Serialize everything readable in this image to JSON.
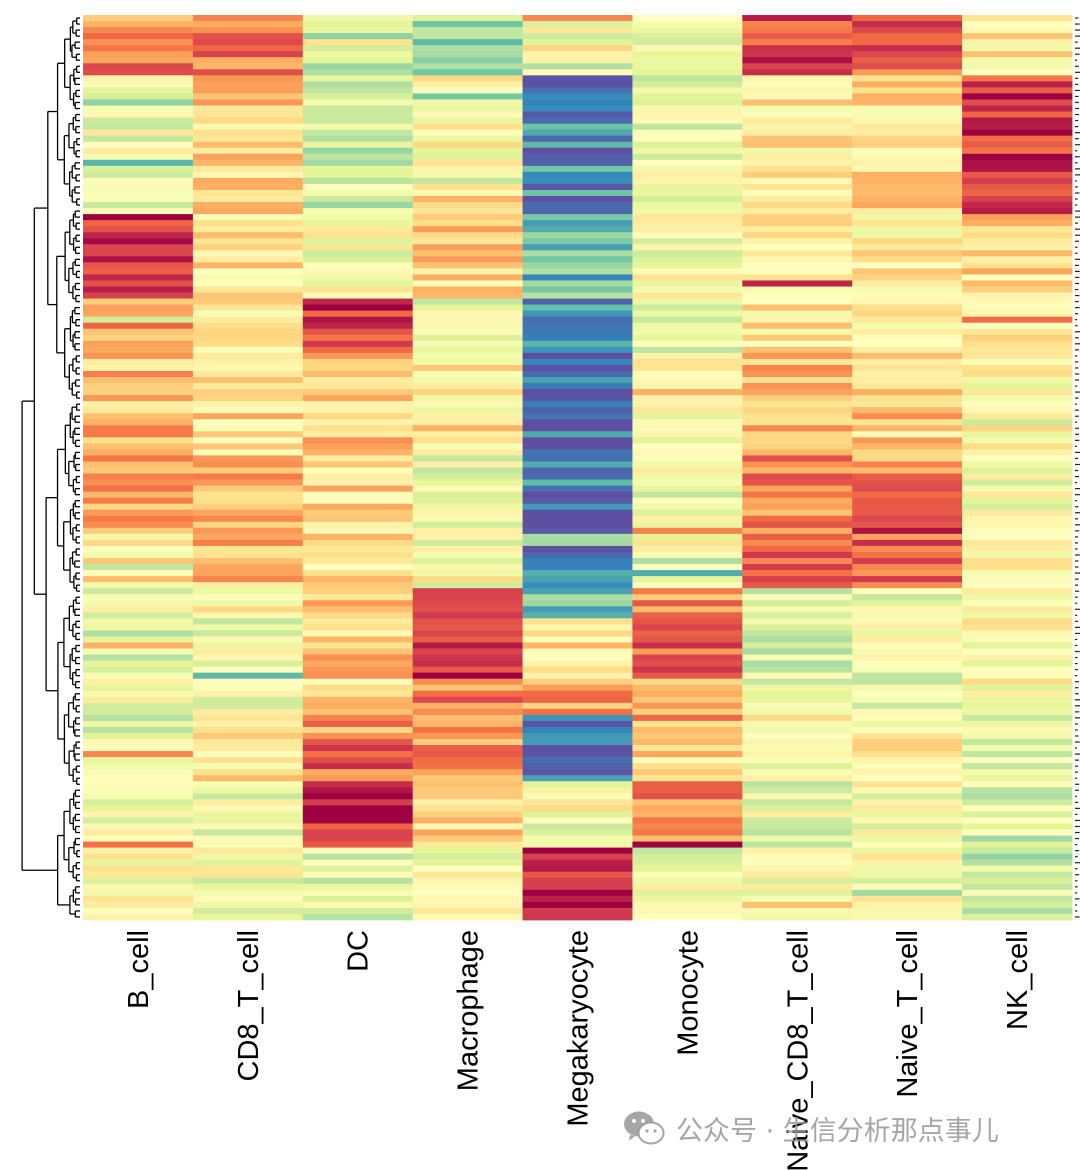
{
  "chart_data": {
    "type": "heatmap",
    "title": "",
    "xlabel": "",
    "ylabel": "",
    "columns": [
      "B_cell",
      "CD8_T_cell",
      "DC",
      "Macrophage",
      "Megakaryocyte",
      "Monocyte",
      "Naive_CD8_T_cell",
      "Naive_T_cell",
      "NK_cell"
    ],
    "row_count": 150,
    "dendrogram": "rows",
    "palette": "Spectral (blue = low, yellow = mid, red = high)",
    "palette_colors": [
      "#5e4fa2",
      "#3288bd",
      "#66c2a5",
      "#abdda4",
      "#e6f598",
      "#ffffbf",
      "#fee08b",
      "#fdae61",
      "#f46d43",
      "#d53e4f",
      "#9e0142"
    ],
    "value_range": [
      0,
      1
    ],
    "blocks": [
      {
        "rows": [
          0,
          9
        ],
        "levels": [
          0.76,
          0.78,
          0.38,
          0.28,
          0.47,
          0.43,
          0.88,
          0.82,
          0.56
        ]
      },
      {
        "rows": [
          10,
          32
        ],
        "levels": [
          0.46,
          0.62,
          0.38,
          0.5,
          0.1,
          0.45,
          0.56,
          0.6,
          0.9
        ]
      },
      {
        "rows": [
          33,
          46
        ],
        "levels": [
          0.92,
          0.57,
          0.47,
          0.62,
          0.2,
          0.47,
          0.58,
          0.54,
          0.6
        ]
      },
      {
        "rows": [
          47,
          55
        ],
        "levels": [
          0.7,
          0.55,
          0.9,
          0.44,
          0.14,
          0.44,
          0.56,
          0.56,
          0.57
        ]
      },
      {
        "rows": [
          56,
          72
        ],
        "levels": [
          0.66,
          0.6,
          0.64,
          0.53,
          0.04,
          0.48,
          0.66,
          0.66,
          0.52
        ]
      },
      {
        "rows": [
          73,
          84
        ],
        "levels": [
          0.72,
          0.7,
          0.6,
          0.44,
          0.06,
          0.45,
          0.76,
          0.76,
          0.46
        ]
      },
      {
        "rows": [
          85,
          94
        ],
        "levels": [
          0.56,
          0.66,
          0.6,
          0.46,
          0.08,
          0.48,
          0.8,
          0.82,
          0.52
        ]
      },
      {
        "rows": [
          95,
          99
        ],
        "levels": [
          0.46,
          0.5,
          0.64,
          0.92,
          0.22,
          0.75,
          0.42,
          0.44,
          0.55
        ]
      },
      {
        "rows": [
          100,
          109
        ],
        "levels": [
          0.42,
          0.44,
          0.64,
          0.88,
          0.58,
          0.82,
          0.4,
          0.44,
          0.5
        ]
      },
      {
        "rows": [
          110,
          115
        ],
        "levels": [
          0.46,
          0.45,
          0.62,
          0.76,
          0.7,
          0.68,
          0.43,
          0.44,
          0.5
        ]
      },
      {
        "rows": [
          116,
          126
        ],
        "levels": [
          0.42,
          0.56,
          0.82,
          0.74,
          0.12,
          0.6,
          0.5,
          0.52,
          0.44
        ]
      },
      {
        "rows": [
          127,
          137
        ],
        "levels": [
          0.48,
          0.46,
          0.93,
          0.64,
          0.46,
          0.76,
          0.44,
          0.48,
          0.4
        ]
      },
      {
        "rows": [
          138,
          149
        ],
        "levels": [
          0.5,
          0.47,
          0.42,
          0.46,
          0.96,
          0.44,
          0.46,
          0.5,
          0.42
        ]
      }
    ]
  },
  "watermark": {
    "icon": "wechat-icon",
    "text": "公众号 · 生信分析那点事儿"
  }
}
